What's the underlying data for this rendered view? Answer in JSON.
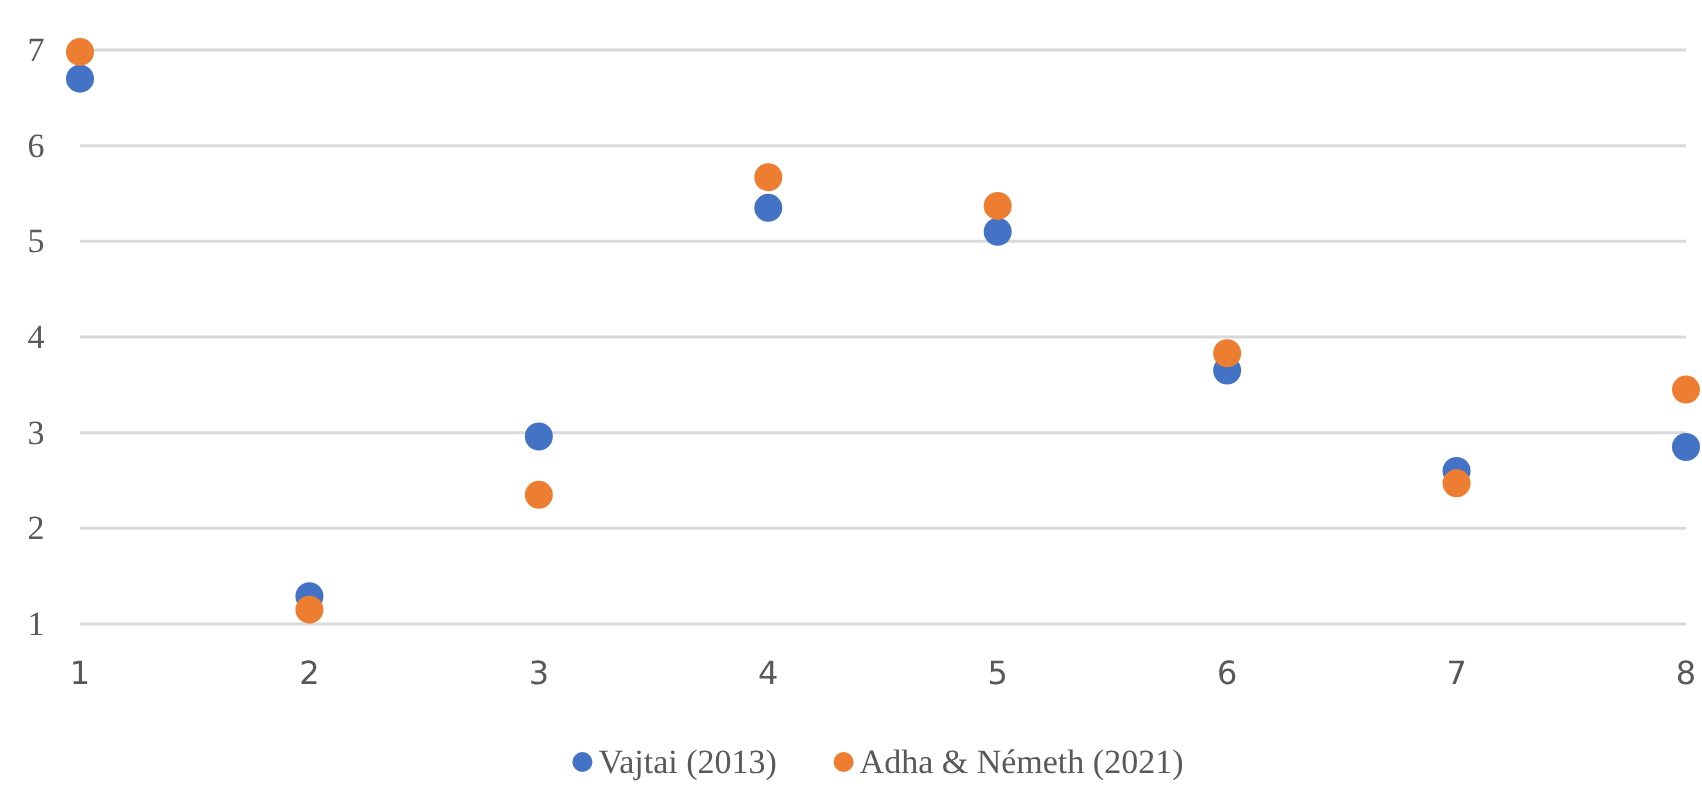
{
  "chart_data": {
    "type": "scatter",
    "x": [
      1,
      2,
      3,
      4,
      5,
      6,
      7,
      8
    ],
    "series": [
      {
        "name": "Vajtai (2013)",
        "color": "#4472c4",
        "values": [
          6.7,
          1.29,
          2.96,
          5.35,
          5.1,
          3.65,
          2.6,
          2.85
        ]
      },
      {
        "name": "Adha & Németh (2021)",
        "color": "#ed7d31",
        "values": [
          6.98,
          1.15,
          2.35,
          5.67,
          5.37,
          3.83,
          2.47,
          3.45
        ]
      }
    ],
    "xlim": [
      1,
      8
    ],
    "xticks": [
      1,
      2,
      3,
      4,
      5,
      6,
      7,
      8
    ],
    "ylim": [
      1,
      7
    ],
    "yticks": [
      1,
      2,
      3,
      4,
      5,
      6,
      7
    ],
    "grid": "y",
    "legend": "bottom",
    "marker": "circle"
  }
}
